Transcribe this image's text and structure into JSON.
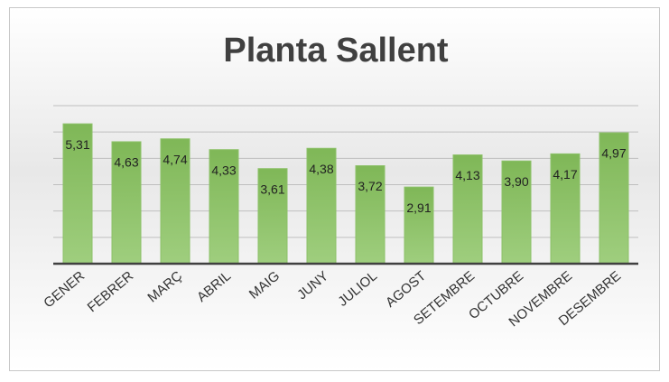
{
  "chart_data": {
    "type": "bar",
    "title": "Planta Sallent",
    "categories": [
      "GENER",
      "FEBRER",
      "MARÇ",
      "ABRIL",
      "MAIG",
      "JUNY",
      "JULIOL",
      "AGOST",
      "SETEMBRE",
      "OCTUBRE",
      "NOVEMBRE",
      "DESEMBRE"
    ],
    "values": [
      5.31,
      4.63,
      4.74,
      4.33,
      3.61,
      4.38,
      3.72,
      2.91,
      4.13,
      3.9,
      4.17,
      4.97
    ],
    "value_labels": [
      "5,31",
      "4,63",
      "4,74",
      "4,33",
      "3,61",
      "4,38",
      "3,72",
      "2,91",
      "4,13",
      "3,90",
      "4,17",
      "4,97"
    ],
    "color": "#8cc168",
    "ylim": [
      0,
      6
    ],
    "yticks": [
      0,
      1,
      2,
      3,
      4,
      5,
      6
    ],
    "grid": true
  }
}
